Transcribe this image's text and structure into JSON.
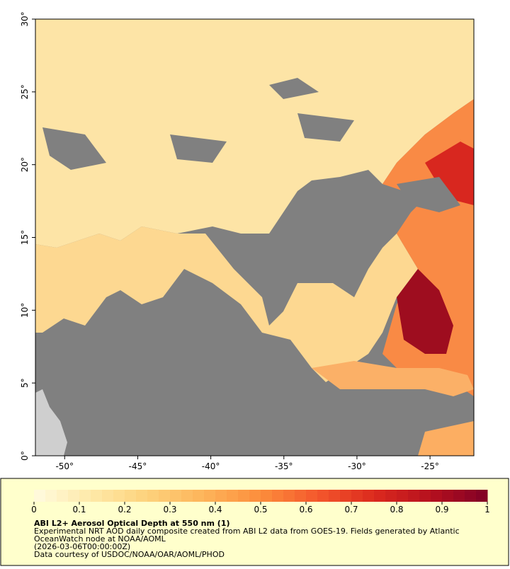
{
  "chart_data": {
    "type": "map",
    "title": "ABI L2+ Aerosol Optical Depth at 550 nm (1)",
    "description_lines": [
      "Experimental NRT AOD daily composite created from ABI L2 data from GOES-19. Fields generated by Atlantic",
      "OceanWatch node at NOAA/AOML",
      "(2026-03-06T00:00:00Z)",
      "Data courtesy of USDOC/NOAA/OAR/AOML/PHOD"
    ],
    "xlim": [
      -52,
      -22
    ],
    "ylim": [
      0,
      30
    ],
    "xticks": [
      {
        "value": -50,
        "label": "-50°"
      },
      {
        "value": -45,
        "label": "-45°"
      },
      {
        "value": -40,
        "label": "-40°"
      },
      {
        "value": -35,
        "label": "-35°"
      },
      {
        "value": -30,
        "label": "-30°"
      },
      {
        "value": -25,
        "label": "-25°"
      }
    ],
    "yticks": [
      {
        "value": 0,
        "label": "0°"
      },
      {
        "value": 5,
        "label": "5°"
      },
      {
        "value": 10,
        "label": "10°"
      },
      {
        "value": 15,
        "label": "15°"
      },
      {
        "value": 20,
        "label": "20°"
      },
      {
        "value": 25,
        "label": "25°"
      },
      {
        "value": 30,
        "label": "30°"
      }
    ],
    "colorbar_lim": [
      0,
      1
    ],
    "colorbar_ticks": [
      0,
      0.1,
      0.2,
      0.3,
      0.4,
      0.5,
      0.6,
      0.7,
      0.8,
      0.9,
      1
    ],
    "colormap": [
      "#fffbe0",
      "#fee9a8",
      "#fdd27c",
      "#fdb45a",
      "#fc8d3c",
      "#f4582c",
      "#dc2a1e",
      "#b5101e",
      "#800026"
    ]
  }
}
